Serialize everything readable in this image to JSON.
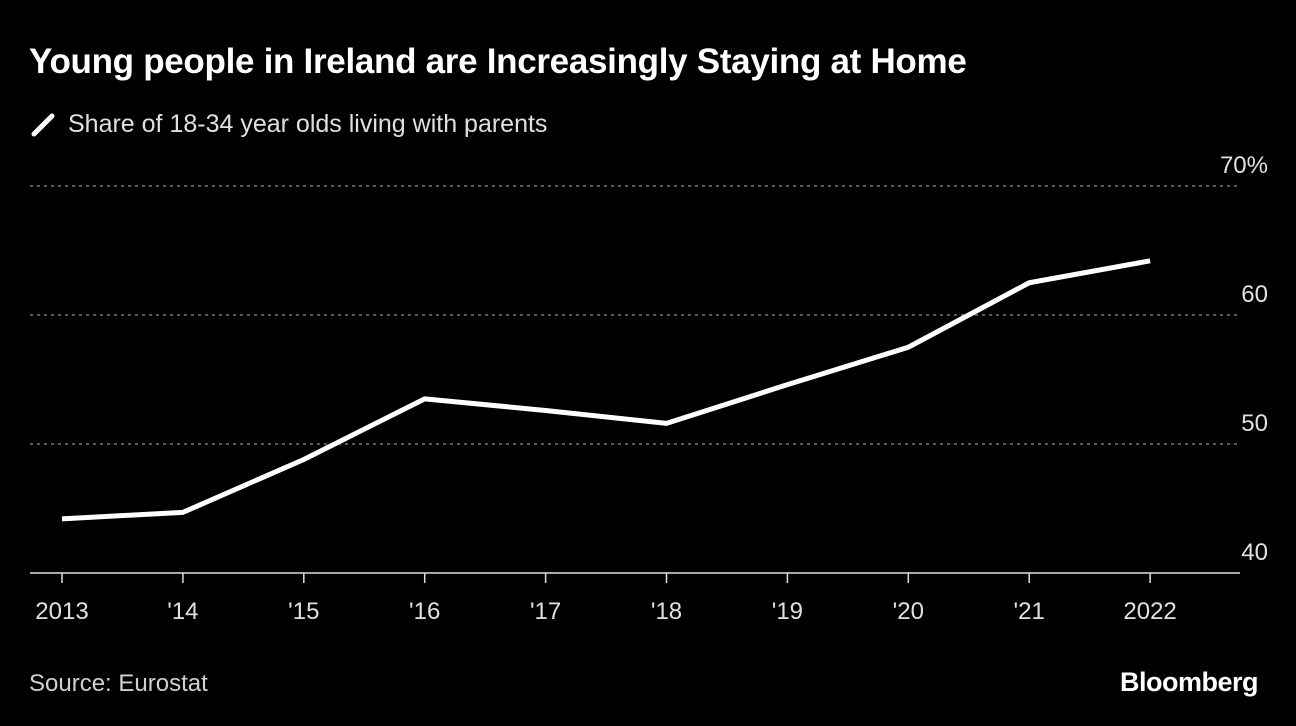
{
  "chart_data": {
    "type": "line",
    "title": "Young people in Ireland are Increasingly Staying at Home",
    "series": [
      {
        "name": "Share of 18-34 year olds living with parents",
        "color": "#ffffff",
        "values": [
          44.2,
          44.7,
          48.8,
          53.5,
          52.6,
          51.6,
          54.6,
          57.5,
          62.5,
          64.2
        ]
      }
    ],
    "x": [
      2013,
      2014,
      2015,
      2016,
      2017,
      2018,
      2019,
      2020,
      2021,
      2022
    ],
    "x_tick_labels": [
      "2013",
      "'14",
      "'15",
      "'16",
      "'17",
      "'18",
      "'19",
      "'20",
      "'21",
      "2022"
    ],
    "ylim": [
      40,
      70
    ],
    "y_ticks": [
      40,
      50,
      60,
      70
    ],
    "y_tick_labels": [
      "40",
      "50",
      "60",
      "70%"
    ],
    "y_axis_side": "right",
    "grid": "horizontal dotted",
    "legend_placement": "top-left",
    "source": "Source: Eurostat",
    "brand": "Bloomberg",
    "background": "#000000"
  }
}
